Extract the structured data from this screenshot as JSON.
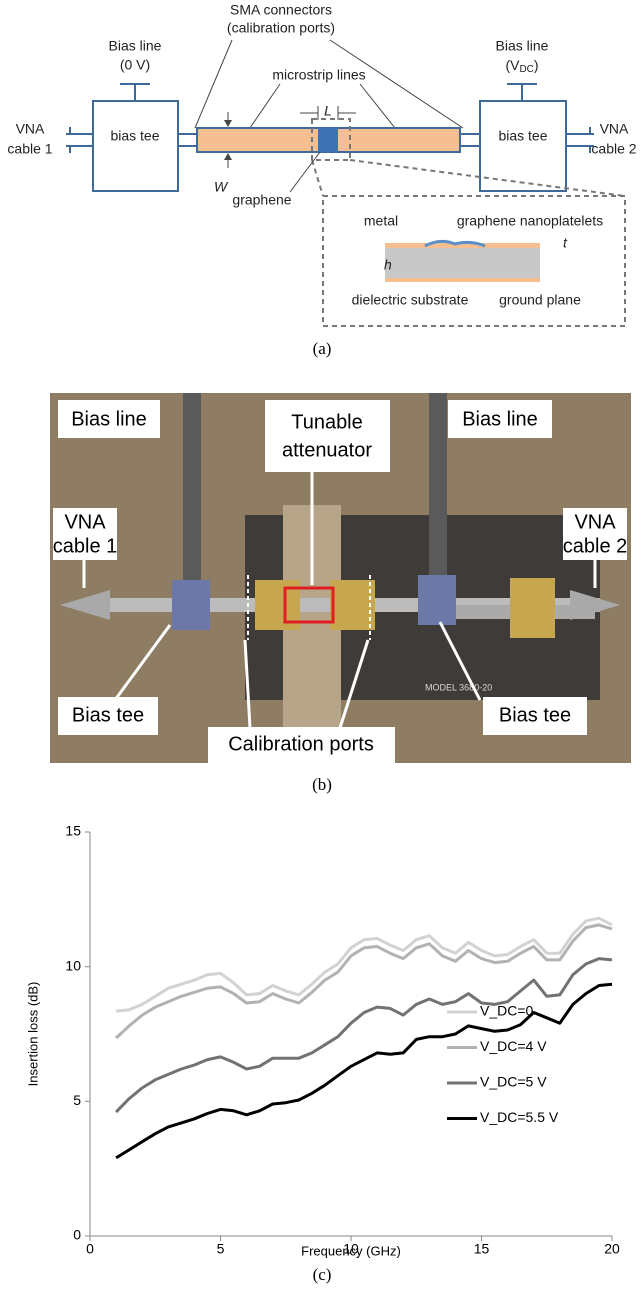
{
  "panel_a": {
    "sma": [
      "SMA connectors",
      "(calibration ports)"
    ],
    "bias_left": [
      "Bias line",
      "(0 V)"
    ],
    "bias_right": {
      "line": "Bias line",
      "open": "(V",
      "sub": "DC",
      "close": ")"
    },
    "microstrip": "microstrip lines",
    "vna_left": [
      "VNA",
      "cable 1"
    ],
    "vna_right": [
      "VNA",
      "cable 2"
    ],
    "tee_left": "bias tee",
    "tee_right": "bias tee",
    "L": "L",
    "W": "W",
    "graphene": "graphene",
    "metal": "metal",
    "nanoplatelets": "graphene nanoplatelets",
    "t": "t",
    "h": "h",
    "substrate": "dielectric substrate",
    "ground": "ground plane",
    "caption": "(a)"
  },
  "panel_b": {
    "bias_left": "Bias line",
    "bias_right": "Bias line",
    "attenuator": [
      "Tunable",
      "attenuator"
    ],
    "vna_left": [
      "VNA",
      "cable 1"
    ],
    "vna_right": [
      "VNA",
      "cable 2"
    ],
    "tee_left": "Bias tee",
    "tee_right": "Bias tee",
    "cal": "Calibration ports",
    "model": "MODEL 3680-20",
    "caption": "(b)"
  },
  "chart_data": {
    "type": "line",
    "caption": "(c)",
    "xlabel": "Frequency (GHz)",
    "ylabel": "Insertion loss (dB)",
    "x": [
      1,
      1.5,
      2,
      2.5,
      3,
      3.5,
      4,
      4.5,
      5,
      5.5,
      6,
      6.5,
      7,
      7.5,
      8,
      8.5,
      9,
      9.5,
      10,
      10.5,
      11,
      11.5,
      12,
      12.5,
      13,
      13.5,
      14,
      14.5,
      15,
      15.5,
      16,
      16.5,
      17,
      17.5,
      18,
      18.5,
      19,
      19.5,
      20
    ],
    "series": [
      {
        "name": "V_DC=0",
        "color": "#d2d2d2",
        "values": [
          8.35,
          8.4,
          8.6,
          8.9,
          9.2,
          9.35,
          9.5,
          9.7,
          9.75,
          9.4,
          8.95,
          9.0,
          9.3,
          9.1,
          8.95,
          9.35,
          9.8,
          10.1,
          10.7,
          11.0,
          11.05,
          10.8,
          10.6,
          11.0,
          11.15,
          10.7,
          10.5,
          10.9,
          10.6,
          10.4,
          10.45,
          10.75,
          11.0,
          10.5,
          10.5,
          11.2,
          11.7,
          11.8,
          11.55
        ]
      },
      {
        "name": "V_DC=4 V",
        "color": "#b2b2b2",
        "values": [
          7.35,
          7.8,
          8.2,
          8.5,
          8.7,
          8.9,
          9.05,
          9.2,
          9.25,
          9.0,
          8.65,
          8.7,
          9.0,
          8.8,
          8.65,
          9.05,
          9.5,
          9.8,
          10.4,
          10.7,
          10.75,
          10.5,
          10.3,
          10.7,
          10.85,
          10.4,
          10.2,
          10.6,
          10.3,
          10.15,
          10.2,
          10.5,
          10.75,
          10.25,
          10.25,
          10.95,
          11.45,
          11.55,
          11.4
        ]
      },
      {
        "name": "V_DC=5 V",
        "color": "#727272",
        "values": [
          4.6,
          5.1,
          5.5,
          5.8,
          6.0,
          6.2,
          6.35,
          6.55,
          6.65,
          6.45,
          6.2,
          6.3,
          6.6,
          6.6,
          6.6,
          6.8,
          7.1,
          7.4,
          7.9,
          8.3,
          8.5,
          8.45,
          8.2,
          8.6,
          8.8,
          8.6,
          8.7,
          9.0,
          8.65,
          8.6,
          8.7,
          9.1,
          9.5,
          8.9,
          8.95,
          9.7,
          10.1,
          10.3,
          10.25
        ]
      },
      {
        "name": "V_DC=5.5 V",
        "color": "#000000",
        "values": [
          2.9,
          3.2,
          3.5,
          3.8,
          4.05,
          4.2,
          4.35,
          4.55,
          4.7,
          4.65,
          4.5,
          4.65,
          4.9,
          4.95,
          5.05,
          5.3,
          5.6,
          5.95,
          6.3,
          6.55,
          6.8,
          6.75,
          6.8,
          7.3,
          7.4,
          7.4,
          7.5,
          7.8,
          7.7,
          7.6,
          7.65,
          7.85,
          8.3,
          8.1,
          7.9,
          8.6,
          9.0,
          9.3,
          9.35
        ]
      }
    ],
    "xlim": [
      0,
      20
    ],
    "xticks": [
      0,
      5,
      10,
      15,
      20
    ],
    "ylim": [
      0,
      15
    ],
    "yticks": [
      0,
      5,
      10,
      15
    ],
    "grid": false,
    "legend": "right"
  }
}
